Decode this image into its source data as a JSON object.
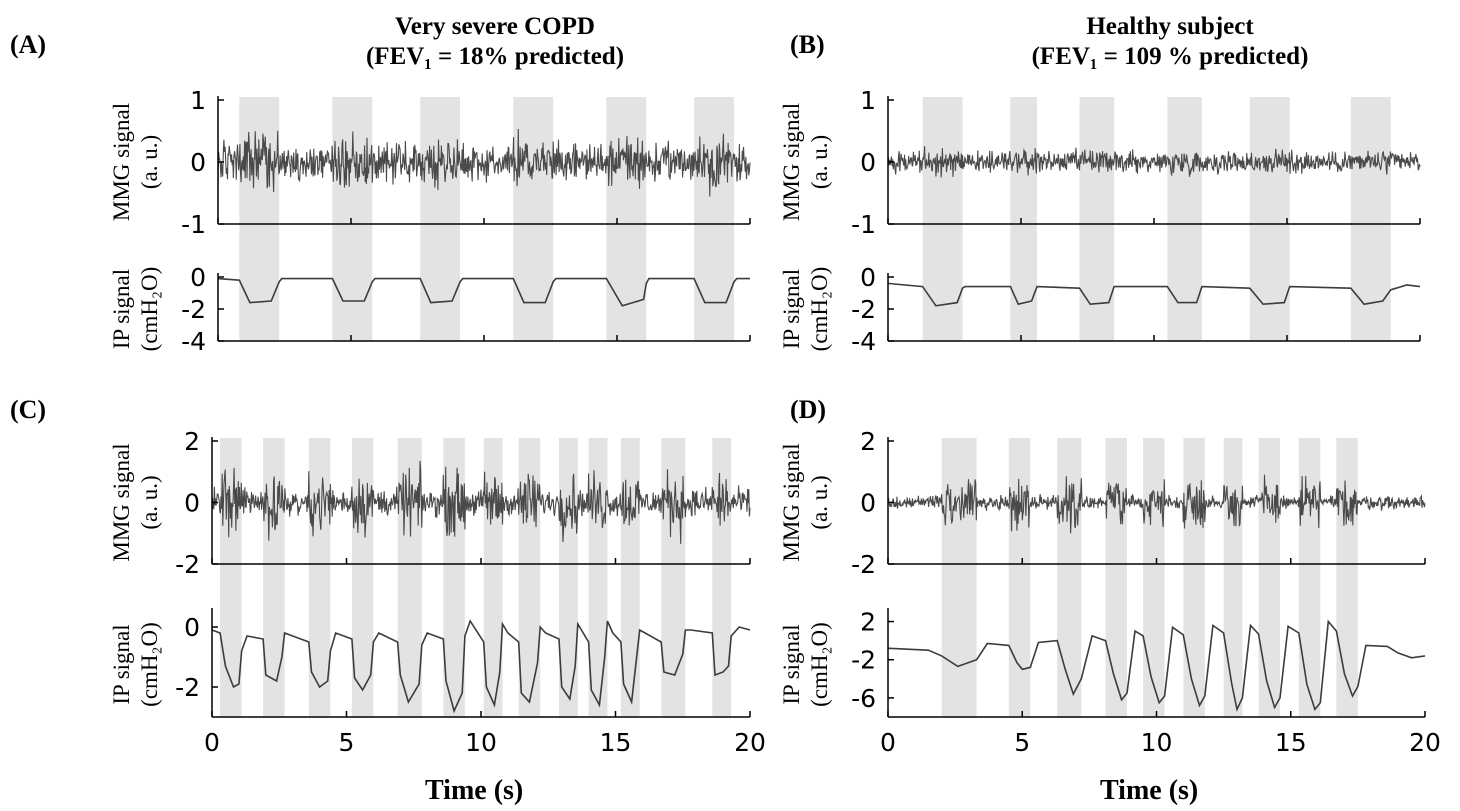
{
  "titles": {
    "left_line1": "Very severe COPD",
    "left_line2": "(FEV₁ = 18% predicted)",
    "right_line1": "Healthy subject",
    "right_line2": "(FEV₁ = 109 % predicted)"
  },
  "panel_labels": [
    "(A)",
    "(B)",
    "(C)",
    "(D)"
  ],
  "xlabel": "Time (s)",
  "chart_data": [
    {
      "type": "line",
      "panel": "A",
      "x_ticks": [
        "0",
        "5",
        "10",
        "15",
        "20"
      ],
      "xlim": [
        0,
        20
      ],
      "shaded_inspiration_intervals_s": [
        [
          0.8,
          2.3
        ],
        [
          4.3,
          5.8
        ],
        [
          7.6,
          9.1
        ],
        [
          11.1,
          12.6
        ],
        [
          14.6,
          16.1
        ],
        [
          17.9,
          19.4
        ]
      ],
      "subplots": [
        {
          "name": "mmg",
          "ylabel": "MMG signal",
          "yunit": "(a. u.)",
          "ylim": [
            -1,
            1
          ],
          "y_ticks": [
            "1",
            "0",
            "-1"
          ],
          "noise_amplitude_expiration": 0.2,
          "noise_amplitude_inspiration": 0.3
        },
        {
          "name": "ip",
          "ylabel": "IP signal",
          "yunit": "(cmH₂O)",
          "ylim": [
            -4,
            0
          ],
          "y_ticks": [
            "0",
            "-2",
            "-4"
          ],
          "baseline": -0.1,
          "x": [
            0,
            0.8,
            1.2,
            2.0,
            2.3,
            2.4,
            4.3,
            4.7,
            5.5,
            5.8,
            5.9,
            7.6,
            8.0,
            8.8,
            9.1,
            9.2,
            11.1,
            11.5,
            12.3,
            12.6,
            12.7,
            14.6,
            15.2,
            16.0,
            16.1,
            16.2,
            17.9,
            18.3,
            19.1,
            19.4,
            19.5,
            20
          ],
          "y": [
            -0.1,
            -0.2,
            -1.6,
            -1.5,
            -0.3,
            -0.1,
            -0.1,
            -1.5,
            -1.5,
            -0.3,
            -0.1,
            -0.1,
            -1.6,
            -1.5,
            -0.3,
            -0.1,
            -0.1,
            -1.6,
            -1.6,
            -0.3,
            -0.1,
            -0.1,
            -1.8,
            -1.4,
            -0.4,
            -0.1,
            -0.1,
            -1.6,
            -1.6,
            -0.3,
            -0.1,
            -0.1
          ]
        }
      ]
    },
    {
      "type": "line",
      "panel": "B",
      "x_ticks": [
        "0",
        "5",
        "10",
        "15",
        "20"
      ],
      "xlim": [
        0,
        20
      ],
      "shaded_inspiration_intervals_s": [
        [
          1.3,
          2.8
        ],
        [
          4.6,
          5.6
        ],
        [
          7.2,
          8.5
        ],
        [
          10.5,
          11.8
        ],
        [
          13.6,
          15.1
        ],
        [
          17.4,
          18.9
        ]
      ],
      "subplots": [
        {
          "name": "mmg",
          "ylabel": "MMG signal",
          "yunit": "(a. u.)",
          "ylim": [
            -1,
            1
          ],
          "y_ticks": [
            "1",
            "0",
            "-1"
          ],
          "noise_amplitude_expiration": 0.12,
          "noise_amplitude_inspiration": 0.14
        },
        {
          "name": "ip",
          "ylabel": "IP signal",
          "yunit": "(cmH₂O)",
          "ylim": [
            -4,
            0
          ],
          "y_ticks": [
            "0",
            "-2",
            "-4"
          ],
          "x": [
            0,
            1.3,
            1.8,
            2.6,
            2.8,
            2.9,
            4.6,
            4.9,
            5.4,
            5.6,
            7.2,
            7.6,
            8.3,
            8.5,
            10.5,
            10.9,
            11.6,
            11.8,
            13.6,
            14.1,
            14.9,
            15.1,
            17.4,
            17.9,
            18.6,
            18.9,
            19.5,
            20
          ],
          "y": [
            -0.4,
            -0.6,
            -1.8,
            -1.6,
            -0.7,
            -0.6,
            -0.6,
            -1.7,
            -1.5,
            -0.6,
            -0.7,
            -1.7,
            -1.6,
            -0.6,
            -0.6,
            -1.6,
            -1.6,
            -0.6,
            -0.7,
            -1.7,
            -1.6,
            -0.6,
            -0.7,
            -1.7,
            -1.5,
            -0.8,
            -0.5,
            -0.6
          ]
        }
      ]
    },
    {
      "type": "line",
      "panel": "C",
      "x_ticks": [
        "0",
        "5",
        "10",
        "15",
        "20"
      ],
      "xlim": [
        0,
        20
      ],
      "shaded_inspiration_intervals_s": [
        [
          0.3,
          1.1
        ],
        [
          1.9,
          2.7
        ],
        [
          3.6,
          4.4
        ],
        [
          5.2,
          6.0
        ],
        [
          6.9,
          7.8
        ],
        [
          8.6,
          9.4
        ],
        [
          10.1,
          10.8
        ],
        [
          11.4,
          12.2
        ],
        [
          12.9,
          13.6
        ],
        [
          14.0,
          14.7
        ],
        [
          15.2,
          15.9
        ],
        [
          16.7,
          17.6
        ],
        [
          18.6,
          19.3
        ]
      ],
      "subplots": [
        {
          "name": "mmg",
          "ylabel": "MMG signal",
          "yunit": "(a. u.)",
          "ylim": [
            -2,
            2
          ],
          "y_ticks": [
            "2",
            "0",
            "-2"
          ],
          "noise_amplitude_expiration": 0.3,
          "noise_amplitude_inspiration": 0.7
        },
        {
          "name": "ip",
          "ylabel": "IP signal",
          "yunit": "(cmH₂O)",
          "ylim": [
            -3,
            0.5
          ],
          "y_ticks": [
            "0",
            "-2"
          ],
          "x": [
            0,
            0.3,
            0.5,
            0.8,
            1.0,
            1.1,
            1.3,
            1.9,
            2.0,
            2.4,
            2.6,
            2.7,
            3.0,
            3.6,
            3.7,
            4.0,
            4.3,
            4.4,
            4.6,
            5.2,
            5.3,
            5.6,
            5.9,
            6.0,
            6.2,
            6.9,
            7.0,
            7.3,
            7.7,
            7.8,
            8.0,
            8.6,
            8.7,
            9.0,
            9.3,
            9.4,
            9.6,
            10.1,
            10.2,
            10.5,
            10.7,
            10.8,
            11.0,
            11.4,
            11.5,
            11.8,
            12.1,
            12.2,
            12.4,
            12.9,
            13.0,
            13.3,
            13.5,
            13.6,
            13.8,
            14.0,
            14.1,
            14.4,
            14.6,
            14.7,
            14.9,
            15.2,
            15.3,
            15.6,
            15.8,
            15.9,
            16.1,
            16.7,
            16.8,
            17.2,
            17.5,
            17.6,
            17.8,
            18.6,
            18.7,
            19.0,
            19.2,
            19.3,
            19.6,
            20
          ],
          "y": [
            -0.1,
            -0.2,
            -1.3,
            -2.0,
            -1.9,
            -0.8,
            -0.3,
            -0.4,
            -1.6,
            -1.8,
            -1.0,
            -0.2,
            -0.3,
            -0.5,
            -1.5,
            -2.0,
            -1.8,
            -0.8,
            -0.2,
            -0.4,
            -1.7,
            -2.1,
            -1.6,
            -0.5,
            -0.2,
            -0.5,
            -1.6,
            -2.5,
            -1.9,
            -0.6,
            -0.2,
            -0.4,
            -1.8,
            -2.8,
            -2.2,
            -0.3,
            0.2,
            -0.5,
            -2.0,
            -2.6,
            -1.5,
            0.1,
            -0.2,
            -0.5,
            -2.2,
            -2.5,
            -1.2,
            0.0,
            -0.2,
            -0.4,
            -2.0,
            -2.4,
            -1.3,
            0.1,
            -0.2,
            -0.5,
            -2.1,
            -2.6,
            -1.0,
            0.2,
            -0.2,
            -0.5,
            -1.9,
            -2.5,
            -0.9,
            -0.1,
            -0.2,
            -0.5,
            -1.5,
            -1.6,
            -0.9,
            -0.1,
            -0.1,
            -0.2,
            -1.6,
            -1.5,
            -1.3,
            -0.3,
            0.0,
            -0.1
          ]
        }
      ]
    },
    {
      "type": "line",
      "panel": "D",
      "x_ticks": [
        "0",
        "5",
        "10",
        "15",
        "20"
      ],
      "xlim": [
        0,
        20
      ],
      "shaded_inspiration_intervals_s": [
        [
          2.0,
          3.3
        ],
        [
          4.5,
          5.3
        ],
        [
          6.3,
          7.2
        ],
        [
          8.1,
          8.9
        ],
        [
          9.5,
          10.3
        ],
        [
          11.0,
          11.8
        ],
        [
          12.5,
          13.2
        ],
        [
          13.8,
          14.6
        ],
        [
          15.3,
          16.1
        ],
        [
          16.7,
          17.5
        ]
      ],
      "subplots": [
        {
          "name": "mmg",
          "ylabel": "MMG signal",
          "yunit": "(a. u.)",
          "ylim": [
            -2,
            2
          ],
          "y_ticks": [
            "2",
            "0",
            "-2"
          ],
          "noise_amplitude_expiration": 0.15,
          "noise_amplitude_inspiration": 0.55
        },
        {
          "name": "ip",
          "ylabel": "IP signal",
          "yunit": "(cmH₂O)",
          "ylim": [
            -8,
            3
          ],
          "y_ticks": [
            "2",
            "-2",
            "-6"
          ],
          "x": [
            0,
            1.5,
            2.0,
            2.6,
            3.3,
            3.7,
            4.5,
            4.8,
            5.0,
            5.3,
            5.6,
            6.3,
            6.6,
            6.9,
            7.2,
            7.6,
            8.1,
            8.4,
            8.7,
            8.9,
            9.2,
            9.5,
            9.8,
            10.1,
            10.3,
            10.6,
            11.0,
            11.3,
            11.6,
            11.8,
            12.1,
            12.5,
            12.8,
            13.0,
            13.2,
            13.5,
            13.8,
            14.1,
            14.4,
            14.6,
            14.9,
            15.3,
            15.6,
            15.9,
            16.1,
            16.4,
            16.7,
            17.0,
            17.3,
            17.5,
            17.8,
            18.6,
            19.0,
            19.5,
            20
          ],
          "y": [
            -0.8,
            -1.0,
            -1.6,
            -2.7,
            -2.0,
            -0.3,
            -0.5,
            -2.3,
            -3.0,
            -2.8,
            -0.2,
            0.0,
            -3.0,
            -5.6,
            -4.0,
            0.5,
            0.0,
            -3.5,
            -6.2,
            -5.5,
            1.0,
            0.5,
            -3.8,
            -6.5,
            -5.8,
            1.4,
            0.6,
            -4.0,
            -6.8,
            -5.8,
            1.6,
            0.8,
            -4.5,
            -7.2,
            -6.0,
            1.6,
            0.7,
            -4.2,
            -7.0,
            -6.0,
            1.5,
            0.8,
            -4.6,
            -7.2,
            -6.5,
            2.0,
            1.0,
            -3.5,
            -5.8,
            -4.8,
            -0.5,
            -0.6,
            -1.3,
            -1.8,
            -1.6
          ]
        }
      ]
    }
  ]
}
